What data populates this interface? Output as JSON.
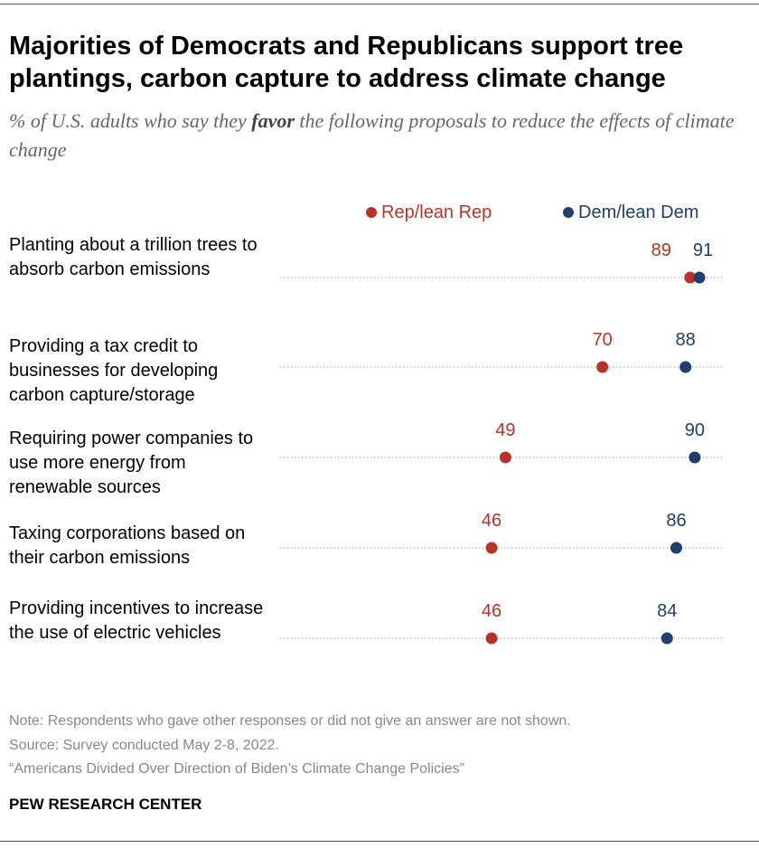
{
  "title": "Majorities of Democrats and Republicans support tree plantings, carbon capture to address climate change",
  "subtitle_pre": "% of U.S. adults who say they ",
  "subtitle_bold": "favor",
  "subtitle_post": " the following proposals to reduce the effects of climate change",
  "chart_data": {
    "type": "dot",
    "xlim": [
      0,
      100
    ],
    "legend": [
      {
        "name": "Rep/lean Rep",
        "color": "#b83325"
      },
      {
        "name": "Dem/lean Dem",
        "color": "#1f3e6e"
      }
    ],
    "categories": [
      "Planting about a trillion trees to absorb carbon emissions",
      "Providing a tax credit to businesses for developing carbon capture/storage",
      "Requiring power companies to use more energy from renewable sources",
      "Taxing corporations based on their carbon emissions",
      "Providing incentives to increase the use of electric vehicles"
    ],
    "series": [
      {
        "name": "Rep/lean Rep",
        "values": [
          89,
          70,
          49,
          46,
          46
        ]
      },
      {
        "name": "Dem/lean Dem",
        "values": [
          91,
          88,
          90,
          86,
          84
        ]
      }
    ]
  },
  "note": "Note: Respondents who gave other responses or did not give an answer are not shown.",
  "source": "Source: Survey conducted May 2-8, 2022.",
  "report": "“Americans Divided Over Direction of Biden’s Climate Change Policies”",
  "brand": "PEW RESEARCH CENTER"
}
